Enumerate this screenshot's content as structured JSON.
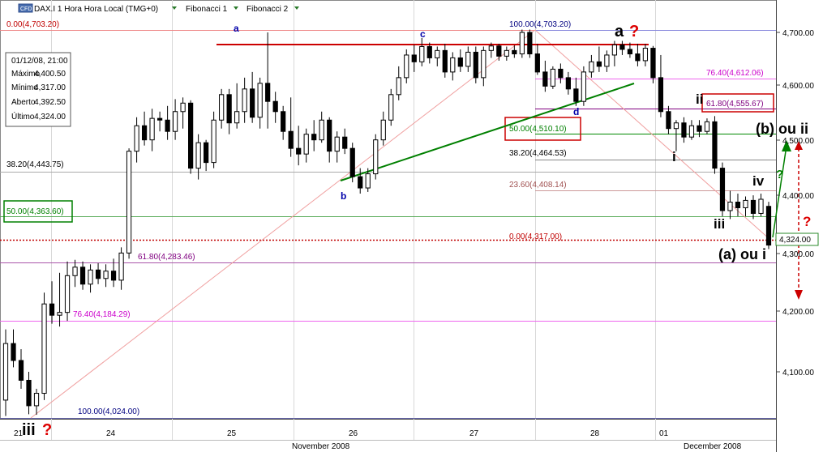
{
  "toolbar": {
    "cfd_badge": "CFD",
    "symbol_label": "DAX.I 1 Hora Hora Local (TMG+0)",
    "fib1_label": "Fibonacci 1",
    "fib2_label": "Fibonacci 2"
  },
  "info_box": {
    "date": "01/12/08, 21:00",
    "rows": [
      {
        "label": "Máximo",
        "value": "4,400.50"
      },
      {
        "label": "Mínimo",
        "value": "4,317.00"
      },
      {
        "label": "Aberto",
        "value": "4,392.50"
      },
      {
        "label": "Último",
        "value": "4,324.00"
      }
    ]
  },
  "colors": {
    "up_candle": "#ffffff",
    "down_candle": "#000000",
    "trendline": "#008000",
    "resistance": "#cc0000",
    "fib_line": "#c00000",
    "wave_label": "#0000aa",
    "question": "#dd0000"
  },
  "chart_data": {
    "type": "candlestick",
    "symbol": "DAX.I",
    "timeframe": "1 Hora",
    "ylim": [
      4015,
      4745
    ],
    "y_ticks": [
      "4,700.00",
      "4,600.00",
      "4,500.00",
      "4,400.00",
      "4,300.00",
      "4,200.00",
      "4,100.00"
    ],
    "x_day_labels": [
      "21",
      "24",
      "25",
      "26",
      "27",
      "28",
      "01"
    ],
    "x_month_labels": [
      "November 2008",
      "December 2008"
    ],
    "last_price": "4,324.00",
    "last_value": 4324,
    "candles": [
      [
        4050,
        4175,
        4022,
        4150
      ],
      [
        4150,
        4175,
        4108,
        4120
      ],
      [
        4120,
        4140,
        4070,
        4085
      ],
      [
        4085,
        4100,
        4025,
        4040
      ],
      [
        4040,
        4070,
        4024,
        4062
      ],
      [
        4062,
        4240,
        4050,
        4220
      ],
      [
        4220,
        4260,
        4185,
        4200
      ],
      [
        4200,
        4275,
        4180,
        4205
      ],
      [
        4205,
        4295,
        4190,
        4270
      ],
      [
        4270,
        4298,
        4250,
        4285
      ],
      [
        4285,
        4295,
        4245,
        4255
      ],
      [
        4255,
        4290,
        4240,
        4280
      ],
      [
        4280,
        4292,
        4255,
        4265
      ],
      [
        4265,
        4290,
        4250,
        4278
      ],
      [
        4278,
        4300,
        4250,
        4262
      ],
      [
        4262,
        4320,
        4245,
        4310
      ],
      [
        4310,
        4495,
        4300,
        4490
      ],
      [
        4490,
        4550,
        4470,
        4535
      ],
      [
        4535,
        4560,
        4500,
        4510
      ],
      [
        4510,
        4565,
        4490,
        4548
      ],
      [
        4548,
        4560,
        4525,
        4545
      ],
      [
        4545,
        4570,
        4510,
        4525
      ],
      [
        4525,
        4582,
        4510,
        4560
      ],
      [
        4560,
        4585,
        4530,
        4575
      ],
      [
        4575,
        4580,
        4450,
        4460
      ],
      [
        4460,
        4520,
        4440,
        4505
      ],
      [
        4505,
        4510,
        4455,
        4470
      ],
      [
        4470,
        4560,
        4460,
        4545
      ],
      [
        4545,
        4600,
        4530,
        4590
      ],
      [
        4590,
        4600,
        4520,
        4540
      ],
      [
        4540,
        4610,
        4530,
        4560
      ],
      [
        4560,
        4620,
        4540,
        4600
      ],
      [
        4600,
        4630,
        4540,
        4550
      ],
      [
        4550,
        4620,
        4530,
        4610
      ],
      [
        4610,
        4700,
        4530,
        4578
      ],
      [
        4578,
        4595,
        4540,
        4560
      ],
      [
        4560,
        4570,
        4510,
        4525
      ],
      [
        4525,
        4585,
        4480,
        4495
      ],
      [
        4495,
        4535,
        4465,
        4485
      ],
      [
        4485,
        4530,
        4470,
        4520
      ],
      [
        4520,
        4545,
        4490,
        4510
      ],
      [
        4510,
        4560,
        4505,
        4545
      ],
      [
        4545,
        4550,
        4470,
        4490
      ],
      [
        4490,
        4525,
        4470,
        4515
      ],
      [
        4515,
        4530,
        4485,
        4495
      ],
      [
        4495,
        4505,
        4435,
        4445
      ],
      [
        4445,
        4460,
        4415,
        4425
      ],
      [
        4425,
        4460,
        4418,
        4450
      ],
      [
        4450,
        4520,
        4440,
        4510
      ],
      [
        4510,
        4560,
        4500,
        4545
      ],
      [
        4545,
        4600,
        4535,
        4590
      ],
      [
        4590,
        4640,
        4580,
        4620
      ],
      [
        4620,
        4670,
        4610,
        4660
      ],
      [
        4660,
        4678,
        4630,
        4648
      ],
      [
        4648,
        4690,
        4640,
        4675
      ],
      [
        4675,
        4682,
        4645,
        4655
      ],
      [
        4655,
        4675,
        4640,
        4668
      ],
      [
        4668,
        4680,
        4620,
        4630
      ],
      [
        4630,
        4665,
        4615,
        4655
      ],
      [
        4655,
        4670,
        4630,
        4640
      ],
      [
        4640,
        4675,
        4630,
        4665
      ],
      [
        4665,
        4675,
        4610,
        4620
      ],
      [
        4620,
        4675,
        4605,
        4668
      ],
      [
        4668,
        4682,
        4655,
        4676
      ],
      [
        4676,
        4680,
        4650,
        4658
      ],
      [
        4658,
        4675,
        4650,
        4668
      ],
      [
        4668,
        4677,
        4655,
        4662
      ],
      [
        4662,
        4705,
        4655,
        4700
      ],
      [
        4700,
        4705,
        4655,
        4662
      ],
      [
        4662,
        4680,
        4625,
        4630
      ],
      [
        4630,
        4650,
        4595,
        4605
      ],
      [
        4605,
        4640,
        4600,
        4635
      ],
      [
        4635,
        4645,
        4610,
        4620
      ],
      [
        4620,
        4630,
        4590,
        4600
      ],
      [
        4600,
        4620,
        4570,
        4578
      ],
      [
        4578,
        4640,
        4570,
        4630
      ],
      [
        4630,
        4660,
        4620,
        4648
      ],
      [
        4648,
        4675,
        4630,
        4640
      ],
      [
        4640,
        4668,
        4630,
        4660
      ],
      [
        4660,
        4685,
        4640,
        4678
      ],
      [
        4678,
        4685,
        4660,
        4670
      ],
      [
        4670,
        4682,
        4655,
        4662
      ],
      [
        4662,
        4680,
        4640,
        4650
      ],
      [
        4650,
        4680,
        4640,
        4672
      ],
      [
        4672,
        4676,
        4610,
        4620
      ],
      [
        4620,
        4660,
        4550,
        4560
      ],
      [
        4560,
        4570,
        4520,
        4530
      ],
      [
        4530,
        4545,
        4490,
        4540
      ],
      [
        4540,
        4550,
        4505,
        4515
      ],
      [
        4515,
        4545,
        4510,
        4535
      ],
      [
        4535,
        4545,
        4515,
        4525
      ],
      [
        4525,
        4548,
        4520,
        4542
      ],
      [
        4542,
        4552,
        4450,
        4460
      ],
      [
        4460,
        4470,
        4375,
        4385
      ],
      [
        4385,
        4420,
        4370,
        4400
      ],
      [
        4400,
        4415,
        4375,
        4390
      ],
      [
        4390,
        4410,
        4375,
        4403
      ],
      [
        4403,
        4412,
        4370,
        4380
      ],
      [
        4380,
        4415,
        4375,
        4405
      ],
      [
        4392.5,
        4400.5,
        4317,
        4324
      ]
    ],
    "fib_set_1": {
      "levels": [
        {
          "label": "0.00(4,703.20)",
          "value": 4703.2,
          "color": "#c00000"
        },
        {
          "label": "38.20(4,443.75)",
          "value": 4443.75,
          "color": "#000000"
        },
        {
          "label": "50.00(4,363.60)",
          "value": 4363.6,
          "color": "#008000"
        },
        {
          "label": "61.80(4,283.46)",
          "value": 4283.46,
          "color": "#800080"
        },
        {
          "label": "76.40(4,184.29)",
          "value": 4184.29,
          "color": "#cc00cc"
        },
        {
          "label": "100.00(4,024.00)",
          "value": 4024,
          "color": "#000080"
        }
      ]
    },
    "fib_set_2": {
      "levels": [
        {
          "label": "100.00(4,703.20)",
          "value": 4703.2,
          "color": "#000080"
        },
        {
          "label": "76.40(4,612.06)",
          "value": 4612.06,
          "color": "#cc00cc"
        },
        {
          "label": "61.80(4,555.67)",
          "value": 4555.67,
          "color": "#800080"
        },
        {
          "label": "50.00(4,510.10)",
          "value": 4510.1,
          "color": "#008000"
        },
        {
          "label": "38.20(4,464.53)",
          "value": 4464.53,
          "color": "#000000"
        },
        {
          "label": "23.60(4,408.14)",
          "value": 4408.14,
          "color": "#a05050"
        },
        {
          "label": "0.00(4,317.00)",
          "value": 4317,
          "color": "#c00000"
        }
      ]
    },
    "resistance_level": 4675,
    "wave_labels": [
      {
        "text": "a",
        "color": "#0000aa"
      },
      {
        "text": "b",
        "color": "#0000aa"
      },
      {
        "text": "c",
        "color": "#0000aa"
      },
      {
        "text": "d",
        "color": "#0000aa"
      },
      {
        "text": "a",
        "color": "#000000"
      },
      {
        "text": "?",
        "color": "#dd0000"
      },
      {
        "text": "i",
        "color": "#000000"
      },
      {
        "text": "ii",
        "color": "#000000"
      },
      {
        "text": "iii",
        "color": "#000000"
      },
      {
        "text": "iv",
        "color": "#000000"
      },
      {
        "text": "(b) ou ii",
        "color": "#000000"
      },
      {
        "text": "(a) ou i",
        "color": "#000000"
      },
      {
        "text": "?",
        "color": "#dd0000"
      },
      {
        "text": "iii",
        "color": "#000000"
      },
      {
        "text": "?",
        "color": "#dd0000"
      }
    ]
  }
}
